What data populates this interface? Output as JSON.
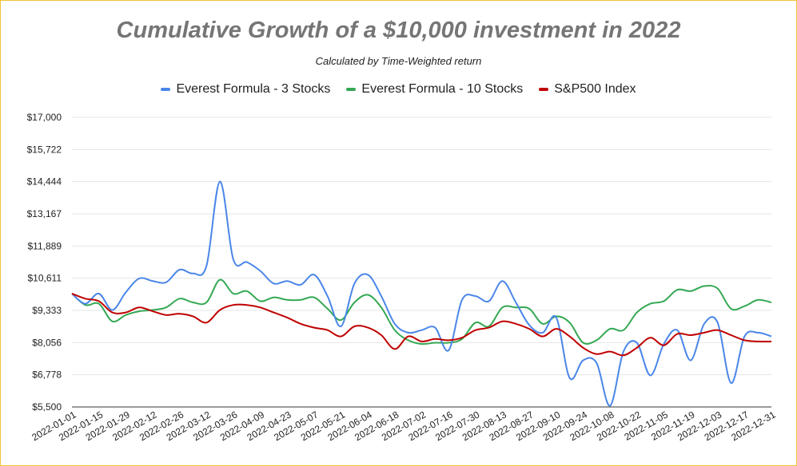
{
  "chart_data": {
    "type": "line",
    "title": "Cumulative Growth of a $10,000 investment in 2022",
    "subtitle": "Calculated by Time-Weighted return",
    "xlabel": "",
    "ylabel": "",
    "ylim": [
      5500,
      17000
    ],
    "y_ticks": [
      "$5,500",
      "$6,778",
      "$8,056",
      "$9,333",
      "$10,611",
      "$11,889",
      "$13,167",
      "$14,444",
      "$15,722",
      "$17,000"
    ],
    "y_tick_values": [
      5500,
      6778,
      8056,
      9333,
      10611,
      11889,
      13167,
      14444,
      15722,
      17000
    ],
    "x_ticks": [
      "2022-01-01",
      "2022-01-15",
      "2022-01-29",
      "2022-02-12",
      "2022-02-26",
      "2022-03-12",
      "2022-03-26",
      "2022-04-09",
      "2022-04-23",
      "2022-05-07",
      "2022-05-21",
      "2022-06-04",
      "2022-06-18",
      "2022-07-02",
      "2022-07-16",
      "2022-07-30",
      "2022-08-13",
      "2022-08-27",
      "2022-09-10",
      "2022-09-24",
      "2022-10-08",
      "2022-10-22",
      "2022-11-05",
      "2022-11-19",
      "2022-12-03",
      "2022-12-17",
      "2022-12-31"
    ],
    "grid": true,
    "legend_position": "top",
    "x": [
      "2022-01-01",
      "2022-01-08",
      "2022-01-15",
      "2022-01-22",
      "2022-01-29",
      "2022-02-05",
      "2022-02-12",
      "2022-02-19",
      "2022-02-26",
      "2022-03-05",
      "2022-03-12",
      "2022-03-19",
      "2022-03-26",
      "2022-04-02",
      "2022-04-09",
      "2022-04-16",
      "2022-04-23",
      "2022-04-30",
      "2022-05-07",
      "2022-05-14",
      "2022-05-21",
      "2022-05-28",
      "2022-06-04",
      "2022-06-11",
      "2022-06-18",
      "2022-06-25",
      "2022-07-02",
      "2022-07-09",
      "2022-07-16",
      "2022-07-23",
      "2022-07-30",
      "2022-08-06",
      "2022-08-13",
      "2022-08-20",
      "2022-08-27",
      "2022-09-03",
      "2022-09-10",
      "2022-09-17",
      "2022-09-24",
      "2022-10-01",
      "2022-10-08",
      "2022-10-15",
      "2022-10-22",
      "2022-10-29",
      "2022-11-05",
      "2022-11-12",
      "2022-11-19",
      "2022-11-26",
      "2022-12-03",
      "2022-12-10",
      "2022-12-17",
      "2022-12-24",
      "2022-12-31"
    ],
    "series": [
      {
        "name": "Everest Formula - 3 Stocks",
        "color": "#4a86e8",
        "values": [
          10000,
          9600,
          10000,
          9350,
          10050,
          10600,
          10500,
          10450,
          10950,
          10800,
          11100,
          14450,
          11350,
          11250,
          10900,
          10400,
          10500,
          10350,
          10750,
          9900,
          8700,
          10400,
          10750,
          9900,
          8800,
          8450,
          8550,
          8650,
          7750,
          9750,
          9900,
          9700,
          10500,
          9650,
          8750,
          8450,
          9050,
          6650,
          7350,
          7250,
          5550,
          7700,
          8050,
          6750,
          8000,
          8550,
          7350,
          8800,
          8850,
          6450,
          8300,
          8450,
          8300
        ]
      },
      {
        "name": "Everest Formula - 10 Stocks",
        "color": "#34a853",
        "values": [
          10000,
          9550,
          9600,
          8900,
          9150,
          9300,
          9350,
          9450,
          9800,
          9650,
          9650,
          10550,
          10000,
          10100,
          9700,
          9850,
          9750,
          9750,
          9850,
          9400,
          8950,
          9650,
          9950,
          9450,
          8550,
          8150,
          8000,
          8050,
          8050,
          8200,
          8850,
          8700,
          9450,
          9450,
          9400,
          8800,
          9100,
          8850,
          8050,
          8150,
          8600,
          8550,
          9250,
          9600,
          9700,
          10150,
          10100,
          10300,
          10200,
          9400,
          9500,
          9750,
          9650
        ]
      },
      {
        "name": "S&P500 Index",
        "color": "#c00000",
        "values": [
          10000,
          9800,
          9700,
          9250,
          9250,
          9450,
          9300,
          9150,
          9200,
          9100,
          8850,
          9350,
          9550,
          9550,
          9450,
          9250,
          9050,
          8800,
          8650,
          8550,
          8300,
          8700,
          8650,
          8350,
          7800,
          8300,
          8100,
          8200,
          8150,
          8250,
          8550,
          8650,
          8900,
          8800,
          8600,
          8300,
          8600,
          8300,
          7850,
          7600,
          7700,
          7550,
          7850,
          8250,
          7950,
          8400,
          8350,
          8450,
          8550,
          8350,
          8150,
          8100,
          8100
        ]
      }
    ]
  }
}
